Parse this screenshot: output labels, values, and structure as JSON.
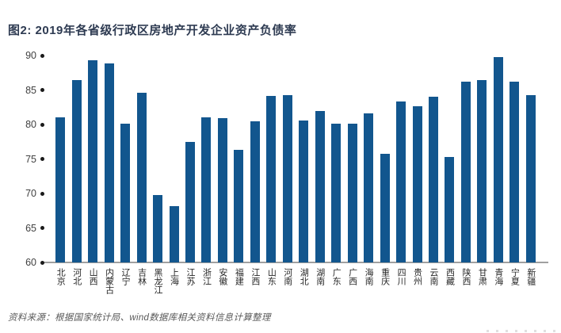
{
  "header": {
    "title": "图2: 2019年各省级行政区房地产开发企业资产负债率"
  },
  "footer": {
    "source": "资料来源：根据国家统计局、wind数据库相关资料信息计算整理"
  },
  "colors": {
    "bar": "#12568e",
    "title_text": "#2e3b52",
    "axis_line": "#a0a0a0",
    "tick_dot": "#1a1a1a",
    "axis_label": "#404040",
    "source_text": "#595959"
  },
  "chart_data": {
    "type": "bar",
    "title": "图2: 2019年各省级行政区房地产开发企业资产负债率",
    "xlabel": "",
    "ylabel": "",
    "ylim": [
      60,
      90
    ],
    "yticks": [
      90,
      85,
      80,
      75,
      70,
      65,
      60
    ],
    "grid": false,
    "legend_position": "none",
    "categories": [
      "北京",
      "河北",
      "山西",
      "内蒙古",
      "辽宁",
      "吉林",
      "黑龙江",
      "上海",
      "江苏",
      "浙江",
      "安徽",
      "福建",
      "江西",
      "山东",
      "河南",
      "湖北",
      "湖南",
      "广东",
      "广西",
      "海南",
      "重庆",
      "四川",
      "贵州",
      "云南",
      "西藏",
      "陕西",
      "甘肃",
      "青海",
      "宁夏",
      "新疆"
    ],
    "values": [
      81.0,
      86.4,
      89.3,
      88.8,
      80.1,
      84.6,
      69.8,
      68.2,
      77.5,
      81.0,
      80.9,
      76.3,
      80.5,
      84.1,
      84.2,
      80.6,
      81.9,
      80.1,
      80.1,
      81.6,
      75.8,
      83.3,
      82.6,
      84.0,
      75.3,
      86.2,
      86.4,
      89.8,
      86.2,
      84.3
    ]
  }
}
